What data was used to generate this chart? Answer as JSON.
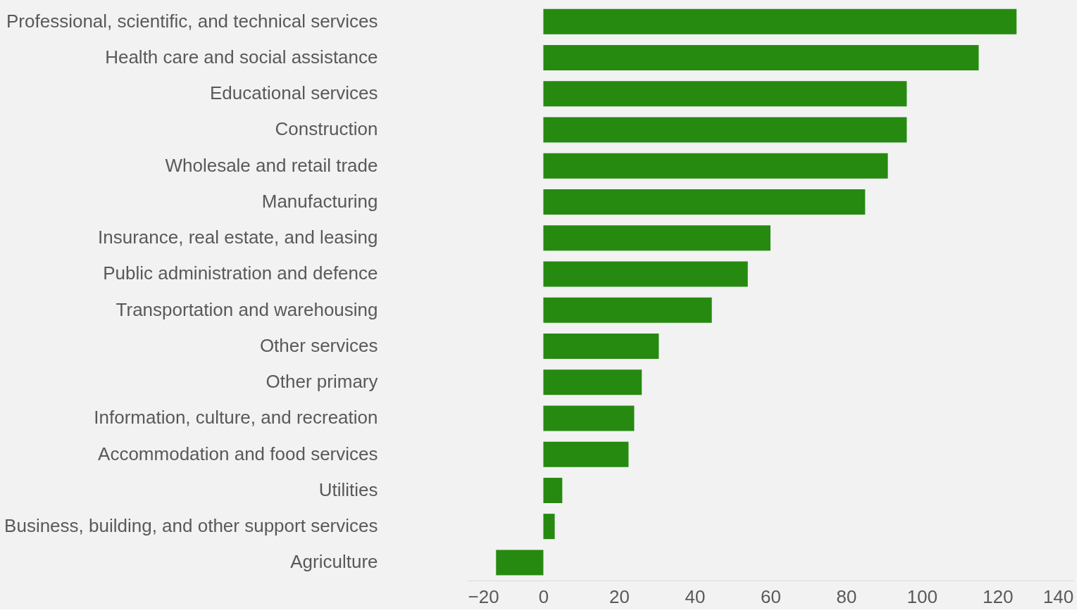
{
  "chart_data": {
    "type": "bar",
    "orientation": "horizontal",
    "categories": [
      "Professional, scientific, and technical services",
      "Health care and social assistance",
      "Educational services",
      "Construction",
      "Wholesale and retail trade",
      "Manufacturing",
      "Insurance, real estate, and leasing",
      "Public administration and defence",
      "Transportation and warehousing",
      "Other services",
      "Other primary",
      "Information, culture, and recreation",
      "Accommodation and food services",
      "Utilities",
      "Business, building, and other support services",
      "Agriculture"
    ],
    "values": [
      125,
      115,
      96,
      96,
      91,
      85,
      60,
      54,
      44.5,
      30.5,
      26,
      24,
      22.5,
      5,
      3,
      -12.5
    ],
    "color": "#268a10",
    "xlim": [
      -20,
      140
    ],
    "xticks": [
      -20,
      0,
      20,
      40,
      60,
      80,
      100,
      120,
      140
    ],
    "grid": false
  }
}
